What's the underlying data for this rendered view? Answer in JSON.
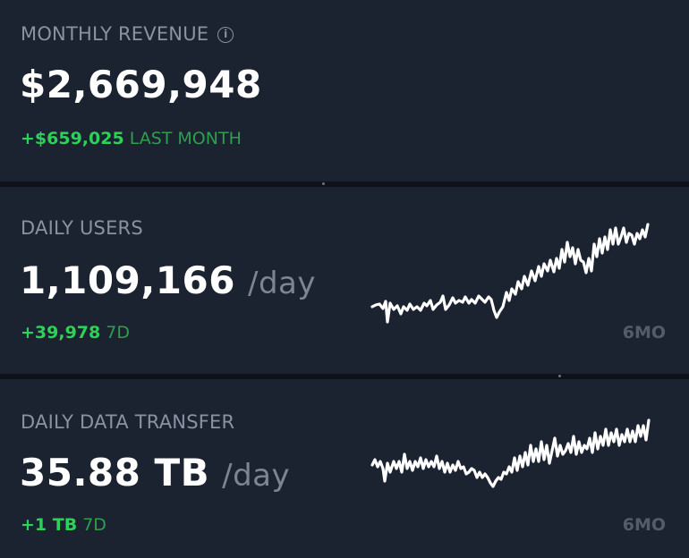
{
  "revenue": {
    "label": "MONTHLY REVENUE",
    "value": "$2,669,948",
    "delta": "+$659,025",
    "period": "LAST MONTH",
    "info_icon": "info-icon"
  },
  "users": {
    "label": "DAILY USERS",
    "value": "1,109,166",
    "unit": "/day",
    "delta": "+39,978",
    "period": "7D",
    "range": "6MO"
  },
  "transfer": {
    "label": "DAILY DATA TRANSFER",
    "value": "35.88 TB",
    "unit": "/day",
    "delta": "+1 TB",
    "period": "7D",
    "range": "6MO"
  },
  "colors": {
    "positive": "#2ed158",
    "positive_muted": "#2e9e4f",
    "card": "#1b2230",
    "sparkline": "#ffffff"
  }
}
